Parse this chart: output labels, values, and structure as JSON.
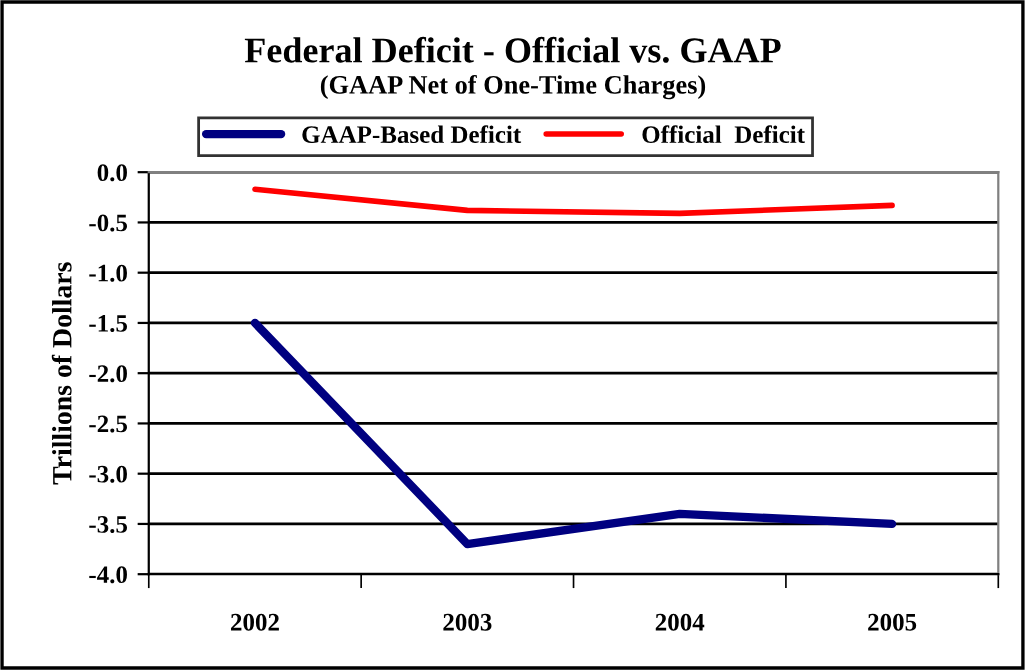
{
  "chart_data": {
    "type": "line",
    "title": "Federal Deficit - Official vs. GAAP",
    "subtitle": "(GAAP Net of One-Time Charges)",
    "ylabel": "Trillions of Dollars",
    "categories": [
      "2002",
      "2003",
      "2004",
      "2005"
    ],
    "series": [
      {
        "name": "GAAP-Based Deficit",
        "color": "#000080",
        "values": [
          -1.5,
          -3.7,
          -3.4,
          -3.5
        ]
      },
      {
        "name": "Official  Deficit",
        "color": "#ff0000",
        "values": [
          -0.17,
          -0.38,
          -0.41,
          -0.33
        ]
      }
    ],
    "ylim": [
      -4.0,
      0.0
    ],
    "yticks": [
      {
        "value": -4.0,
        "label": "-4.0"
      },
      {
        "value": -3.5,
        "label": "-3.5"
      },
      {
        "value": -3.0,
        "label": "-3.0"
      },
      {
        "value": -2.5,
        "label": "-2.5"
      },
      {
        "value": -2.0,
        "label": "-2.0"
      },
      {
        "value": -1.5,
        "label": "-1.5"
      },
      {
        "value": -1.0,
        "label": "-1.0"
      },
      {
        "value": -0.5,
        "label": "-0.5"
      },
      {
        "value": 0.0,
        "label": "0.0"
      }
    ],
    "grid": "y",
    "legend": "top",
    "marker": "none",
    "line_style": "solid"
  }
}
